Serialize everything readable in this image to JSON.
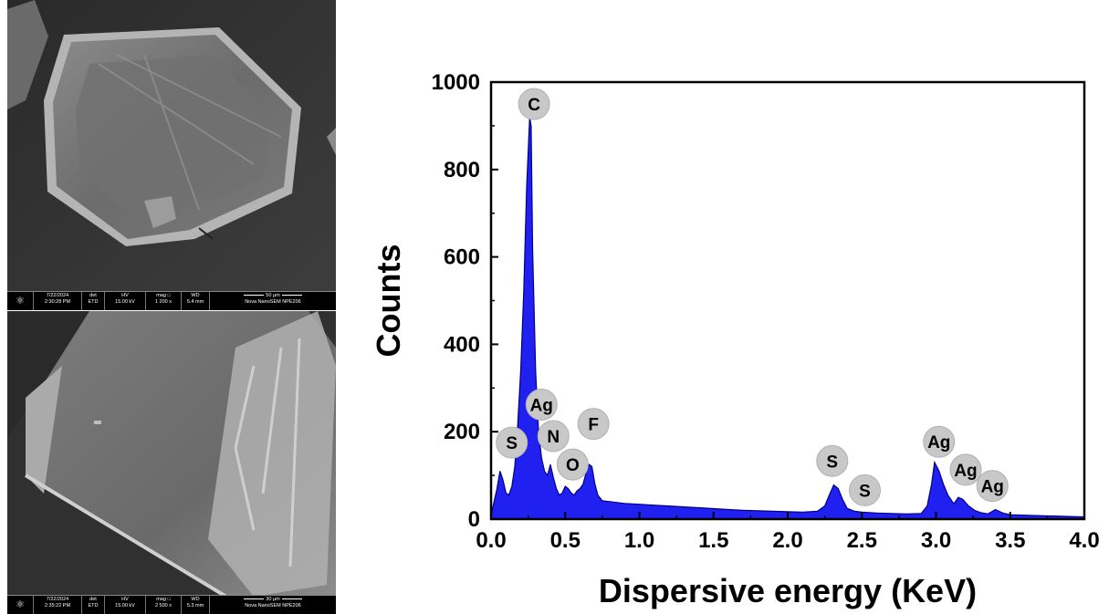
{
  "sem_panels": [
    {
      "date": "7/22/2024",
      "time": "2:30:28 PM",
      "det_label": "det",
      "det_value": "ETD",
      "hv_label": "HV",
      "hv_value": "15.00 kV",
      "mag_label": "mag □",
      "mag_value": "1 200 x",
      "wd_label": "WD",
      "wd_value": "5.4 mm",
      "scale_label": "50 µm",
      "instrument": "Nova NanoSEM  NPE206"
    },
    {
      "date": "7/22/2024",
      "time": "2:35:22 PM",
      "det_label": "det",
      "det_value": "ETD",
      "hv_label": "HV",
      "hv_value": "15.00 kV",
      "mag_label": "mag □",
      "mag_value": "2 500 x",
      "wd_label": "WD",
      "wd_value": "5.3 mm",
      "scale_label": "30 µm",
      "instrument": "Nova NanoSEM  NPE206"
    }
  ],
  "chart_data": {
    "type": "area",
    "xlabel": "Dispersive energy (KeV)",
    "ylabel": "Counts",
    "xlim": [
      0,
      4.0
    ],
    "ylim": [
      0,
      1000
    ],
    "xticks": [
      "0.0",
      "0.5",
      "1.0",
      "1.5",
      "2.0",
      "2.5",
      "3.0",
      "3.5",
      "4.0"
    ],
    "yticks": [
      "0",
      "200",
      "400",
      "600",
      "800",
      "1000"
    ],
    "fill_color": "#2020f0",
    "line_color": "#00008b",
    "label_circle_color": "#c8c8c8",
    "series": [
      {
        "x": [
          0.0,
          0.02,
          0.04,
          0.06,
          0.08,
          0.1,
          0.12,
          0.14,
          0.16,
          0.18,
          0.2,
          0.22,
          0.24,
          0.26,
          0.27,
          0.28,
          0.3,
          0.32,
          0.34,
          0.36,
          0.38,
          0.4,
          0.42,
          0.44,
          0.46,
          0.48,
          0.5,
          0.52,
          0.54,
          0.56,
          0.58,
          0.6,
          0.62,
          0.64,
          0.66,
          0.68,
          0.7,
          0.72,
          0.75,
          0.8,
          0.85,
          0.9,
          1.0,
          1.1,
          1.2,
          1.3,
          1.4,
          1.5,
          1.6,
          1.7,
          1.8,
          1.9,
          2.0,
          2.1,
          2.2,
          2.25,
          2.28,
          2.31,
          2.34,
          2.37,
          2.4,
          2.45,
          2.5,
          2.55,
          2.6,
          2.7,
          2.8,
          2.9,
          2.94,
          2.97,
          2.99,
          3.02,
          3.05,
          3.08,
          3.12,
          3.15,
          3.18,
          3.22,
          3.26,
          3.3,
          3.35,
          3.4,
          3.45,
          3.5,
          3.6,
          3.7,
          3.8,
          3.9,
          4.0
        ],
        "y": [
          10,
          40,
          70,
          110,
          90,
          60,
          55,
          75,
          120,
          220,
          340,
          520,
          760,
          920,
          900,
          620,
          340,
          200,
          140,
          110,
          100,
          125,
          95,
          70,
          55,
          60,
          75,
          70,
          60,
          55,
          65,
          70,
          80,
          105,
          125,
          120,
          80,
          55,
          42,
          40,
          38,
          36,
          34,
          32,
          30,
          28,
          26,
          24,
          22,
          20,
          19,
          18,
          17,
          16,
          18,
          30,
          55,
          78,
          70,
          45,
          25,
          18,
          16,
          15,
          14,
          13,
          12,
          13,
          30,
          80,
          130,
          110,
          80,
          55,
          35,
          50,
          45,
          30,
          20,
          15,
          12,
          22,
          14,
          10,
          9,
          8,
          7,
          6,
          5
        ]
      }
    ],
    "peak_labels": [
      {
        "text": "C",
        "x": 0.29,
        "y": 950
      },
      {
        "text": "Ag",
        "x": 0.34,
        "y": 262
      },
      {
        "text": "S",
        "x": 0.14,
        "y": 175
      },
      {
        "text": "N",
        "x": 0.42,
        "y": 190
      },
      {
        "text": "O",
        "x": 0.55,
        "y": 125
      },
      {
        "text": "F",
        "x": 0.69,
        "y": 218
      },
      {
        "text": "S",
        "x": 2.3,
        "y": 133
      },
      {
        "text": "S",
        "x": 2.52,
        "y": 66
      },
      {
        "text": "Ag",
        "x": 3.02,
        "y": 177
      },
      {
        "text": "Ag",
        "x": 3.2,
        "y": 113
      },
      {
        "text": "Ag",
        "x": 3.38,
        "y": 76
      }
    ]
  }
}
